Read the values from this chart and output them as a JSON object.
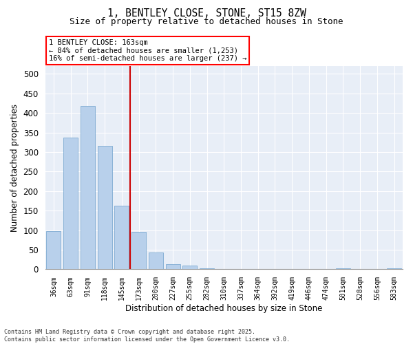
{
  "title1": "1, BENTLEY CLOSE, STONE, ST15 8ZW",
  "title2": "Size of property relative to detached houses in Stone",
  "xlabel": "Distribution of detached houses by size in Stone",
  "ylabel": "Number of detached properties",
  "bar_color": "#b8d0eb",
  "bar_edgecolor": "#6ca0cc",
  "vline_color": "#cc0000",
  "vline_x_idx": 4,
  "categories": [
    "36sqm",
    "63sqm",
    "91sqm",
    "118sqm",
    "145sqm",
    "173sqm",
    "200sqm",
    "227sqm",
    "255sqm",
    "282sqm",
    "310sqm",
    "337sqm",
    "364sqm",
    "392sqm",
    "419sqm",
    "446sqm",
    "474sqm",
    "501sqm",
    "528sqm",
    "556sqm",
    "583sqm"
  ],
  "values": [
    97,
    336,
    418,
    315,
    163,
    96,
    43,
    13,
    9,
    2,
    0,
    0,
    1,
    0,
    0,
    0,
    0,
    2,
    0,
    0,
    2
  ],
  "ylim": [
    0,
    520
  ],
  "yticks": [
    0,
    50,
    100,
    150,
    200,
    250,
    300,
    350,
    400,
    450,
    500
  ],
  "annotation_text": "1 BENTLEY CLOSE: 163sqm\n← 84% of detached houses are smaller (1,253)\n16% of semi-detached houses are larger (237) →",
  "bg_color": "#e8eef7",
  "footer1": "Contains HM Land Registry data © Crown copyright and database right 2025.",
  "footer2": "Contains public sector information licensed under the Open Government Licence v3.0."
}
